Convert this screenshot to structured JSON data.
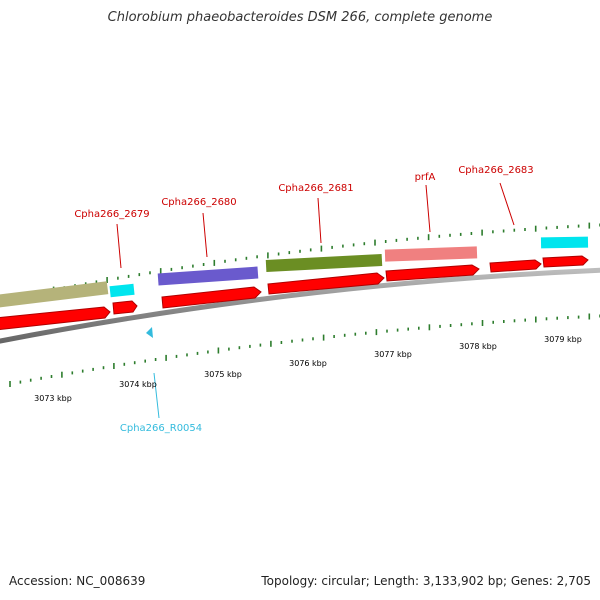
{
  "title": "Chlorobium phaeobacteroides DSM 266, complete genome",
  "footer": {
    "accession": "Accession: NC_008639",
    "topology": "Topology: circular; Length: 3,133,902 bp; Genes: 2,705"
  },
  "colors": {
    "backbone": "#8c8c8c",
    "cds": "#ff0000",
    "tick": "#2d7d2d",
    "label": "#cc0000",
    "rna_label": "#33bbdd"
  },
  "scale_labels": [
    "3073 kbp",
    "3074 kbp",
    "3075 kbp",
    "3076 kbp",
    "3077 kbp",
    "3078 kbp",
    "3079 kbp"
  ],
  "features": [
    {
      "id": "khaki-block",
      "color": "#b5b37a"
    },
    {
      "id": "cyan-block-1",
      "color": "#00e5ee"
    },
    {
      "id": "purple-block",
      "color": "#6a5acd"
    },
    {
      "id": "green-block",
      "color": "#6b8e23"
    },
    {
      "id": "pink-block",
      "color": "#f08080"
    },
    {
      "id": "cyan-block-2",
      "color": "#00e5ee"
    }
  ],
  "gene_labels": [
    {
      "text": "Cpha266_2679"
    },
    {
      "text": "Cpha266_2680"
    },
    {
      "text": "Cpha266_2681"
    },
    {
      "text": "prfA"
    },
    {
      "text": "Cpha266_2683"
    },
    {
      "text": "Cpha266_R0054"
    }
  ]
}
